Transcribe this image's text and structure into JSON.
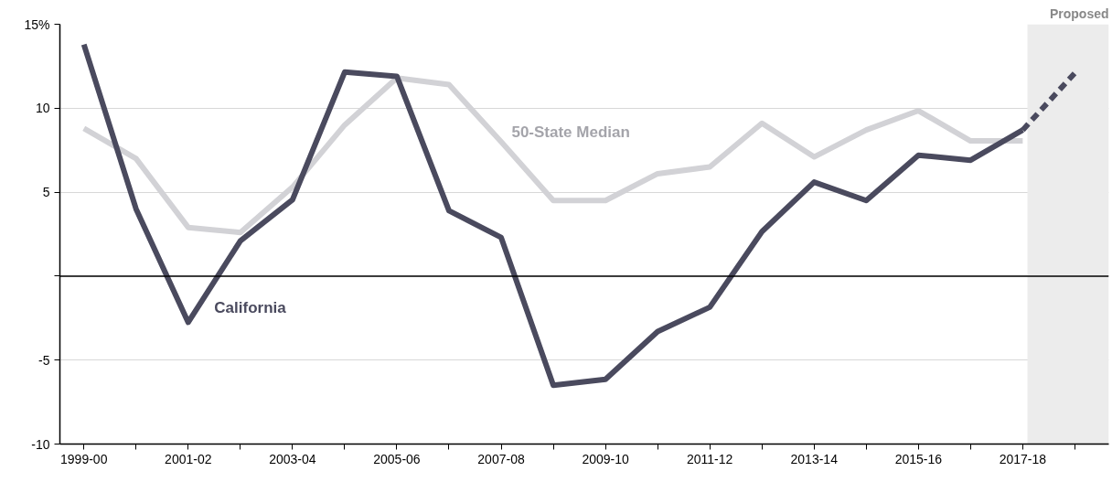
{
  "chart_data": {
    "type": "line",
    "categories": [
      "1999-00",
      null,
      "2001-02",
      null,
      "2003-04",
      null,
      "2005-06",
      null,
      "2007-08",
      null,
      "2009-10",
      null,
      "2011-12",
      null,
      "2013-14",
      null,
      "2015-16",
      null,
      "2017-18",
      null
    ],
    "series": [
      {
        "name": "50-State Median",
        "color": "#d2d2d6",
        "values": [
          8.8,
          7.0,
          2.9,
          2.6,
          5.3,
          9.0,
          11.8,
          11.4,
          8.0,
          4.5,
          4.5,
          6.1,
          6.5,
          9.1,
          7.1,
          8.7,
          9.85,
          8.05,
          8.05,
          null
        ]
      },
      {
        "name": "California",
        "color": "#4a4a5e",
        "values": [
          13.8,
          4.0,
          -2.75,
          2.1,
          4.55,
          12.15,
          11.9,
          3.9,
          2.3,
          -6.5,
          -6.15,
          -3.3,
          -1.85,
          2.65,
          5.6,
          4.5,
          7.2,
          6.9,
          8.7,
          null
        ]
      },
      {
        "color": "#4a4a5e",
        "line_style": "dashed",
        "values": [
          null,
          null,
          null,
          null,
          null,
          null,
          null,
          null,
          null,
          null,
          null,
          null,
          null,
          null,
          null,
          null,
          null,
          null,
          8.7,
          12.1
        ]
      }
    ],
    "ylim": [
      -10,
      15
    ],
    "yticks": [
      -10,
      -5,
      {
        "value": 0,
        "label": null
      },
      5,
      10,
      {
        "value": 15,
        "label": "15%"
      }
    ],
    "grid": "y",
    "legend": false,
    "line_style": "solid",
    "marker": "none",
    "ref_lines": [
      {
        "axis": "y",
        "value": 0,
        "color": "#000000"
      }
    ],
    "annotations": [
      "Proposed"
    ]
  }
}
